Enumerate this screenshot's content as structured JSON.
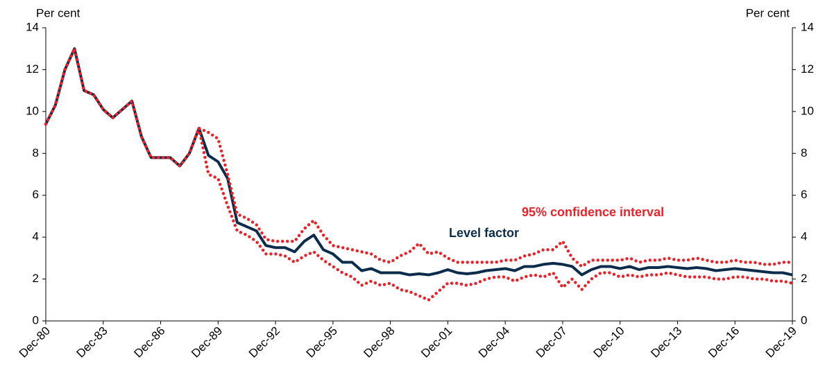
{
  "chart_data": {
    "type": "line",
    "y_label": "Per cent",
    "y2_label": "Per cent",
    "categories": [
      "Dec-80",
      null,
      null,
      null,
      null,
      null,
      "Dec-83",
      null,
      null,
      null,
      null,
      null,
      "Dec-86",
      null,
      null,
      null,
      null,
      null,
      "Dec-89",
      null,
      null,
      null,
      null,
      null,
      "Dec-92",
      null,
      null,
      null,
      null,
      null,
      "Dec-95",
      null,
      null,
      null,
      null,
      null,
      "Dec-98",
      null,
      null,
      null,
      null,
      null,
      "Dec-01",
      null,
      null,
      null,
      null,
      null,
      "Dec-04",
      null,
      null,
      null,
      null,
      null,
      "Dec-07",
      null,
      null,
      null,
      null,
      null,
      "Dec-10",
      null,
      null,
      null,
      null,
      null,
      "Dec-13",
      null,
      null,
      null,
      null,
      null,
      "Dec-16",
      null,
      null,
      null,
      null,
      null,
      "Dec-19"
    ],
    "series": [
      {
        "name": "Level factor",
        "color": "#0b2d4b",
        "style": "solid",
        "values": [
          9.4,
          10.3,
          12.0,
          13.0,
          11.0,
          10.8,
          10.1,
          9.7,
          10.1,
          10.5,
          8.8,
          7.8,
          7.8,
          7.8,
          7.4,
          8.0,
          9.2,
          7.9,
          7.6,
          6.8,
          4.7,
          4.5,
          4.3,
          3.6,
          3.5,
          3.5,
          3.3,
          3.8,
          4.1,
          3.4,
          3.2,
          2.8,
          2.8,
          2.4,
          2.5,
          2.3,
          2.3,
          2.3,
          2.2,
          2.25,
          2.2,
          2.3,
          2.45,
          2.3,
          2.25,
          2.3,
          2.4,
          2.45,
          2.5,
          2.4,
          2.6,
          2.6,
          2.7,
          2.75,
          2.7,
          2.6,
          2.2,
          2.45,
          2.6,
          2.6,
          2.5,
          2.6,
          2.45,
          2.55,
          2.55,
          2.6,
          2.55,
          2.5,
          2.55,
          2.5,
          2.4,
          2.45,
          2.5,
          2.45,
          2.4,
          2.35,
          2.3,
          2.3,
          2.2
        ]
      },
      {
        "name": "95% confidence interval",
        "color": "#e8232a",
        "style": "dotted",
        "values": [
          9.4,
          10.3,
          12.0,
          13.0,
          11.0,
          10.8,
          10.1,
          9.7,
          10.1,
          10.5,
          8.8,
          7.8,
          7.8,
          7.8,
          7.4,
          8.0,
          9.2,
          9.0,
          8.7,
          7.0,
          5.1,
          4.9,
          4.6,
          3.9,
          3.8,
          3.8,
          3.8,
          4.4,
          4.8,
          4.1,
          3.6,
          3.5,
          3.4,
          3.3,
          3.2,
          2.9,
          2.8,
          3.1,
          3.3,
          3.7,
          3.2,
          3.3,
          3.0,
          2.8,
          2.8,
          2.8,
          2.8,
          2.8,
          2.9,
          2.9,
          3.1,
          3.2,
          3.4,
          3.4,
          3.8,
          3.0,
          2.6,
          2.9,
          2.9,
          2.9,
          2.9,
          3.0,
          2.8,
          2.9,
          2.9,
          3.0,
          2.9,
          2.9,
          3.0,
          2.9,
          2.8,
          2.8,
          2.9,
          2.8,
          2.8,
          2.7,
          2.7,
          2.8,
          2.8
        ]
      },
      {
        "color": "#e8232a",
        "style": "dotted",
        "values": [
          9.4,
          10.3,
          12.0,
          13.0,
          11.0,
          10.8,
          10.1,
          9.7,
          10.1,
          10.5,
          8.8,
          7.8,
          7.8,
          7.8,
          7.4,
          8.0,
          9.2,
          7.0,
          6.8,
          5.5,
          4.3,
          4.1,
          3.8,
          3.2,
          3.2,
          3.1,
          2.8,
          3.1,
          3.3,
          2.9,
          2.6,
          2.3,
          2.1,
          1.7,
          1.9,
          1.7,
          1.8,
          1.5,
          1.4,
          1.2,
          1.0,
          1.4,
          1.8,
          1.8,
          1.7,
          1.8,
          2.0,
          2.1,
          2.1,
          1.9,
          2.1,
          2.2,
          2.1,
          2.3,
          1.6,
          2.0,
          1.5,
          2.0,
          2.3,
          2.3,
          2.1,
          2.2,
          2.1,
          2.2,
          2.2,
          2.3,
          2.2,
          2.1,
          2.1,
          2.1,
          2.0,
          2.0,
          2.1,
          2.1,
          2.0,
          2.0,
          1.9,
          1.9,
          1.8
        ]
      }
    ],
    "ylim": [
      0,
      14
    ],
    "yticks": [
      0,
      2,
      4,
      6,
      8,
      10,
      12,
      14
    ],
    "y2lim": [
      0,
      14
    ],
    "y2ticks": [
      0,
      2,
      4,
      6,
      8,
      10,
      12,
      14
    ]
  }
}
